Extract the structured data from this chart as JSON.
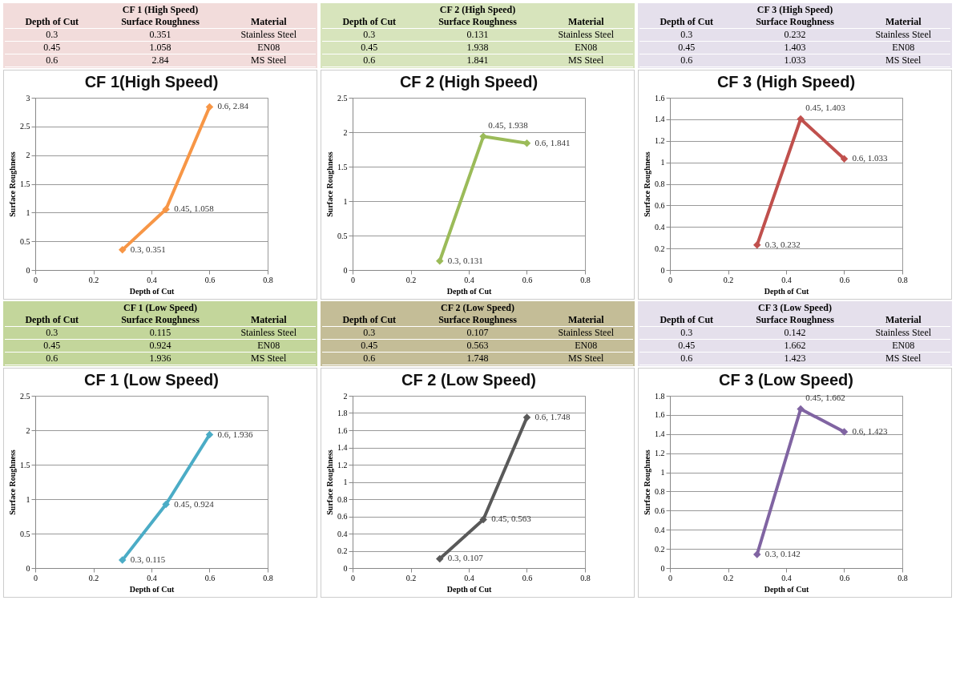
{
  "chart_data": [
    {
      "type": "other",
      "title": "CF 1 (High Speed)",
      "color": "#f2dcdb",
      "annotations": [
        "Depth of Cut",
        "Surface Roughness",
        "Material",
        "0.3",
        "0.351",
        "Stainless Steel",
        "0.45",
        "1.058",
        "EN08",
        "0.6",
        "2.84",
        "MS Steel"
      ]
    },
    {
      "type": "other",
      "title": "CF 2 (High Speed)",
      "color": "#d7e4bc",
      "annotations": [
        "Depth of Cut",
        "Surface Roughness",
        "Material",
        "0.3",
        "0.131",
        "Stainless Steel",
        "0.45",
        "1.938",
        "EN08",
        "0.6",
        "1.841",
        "MS Steel"
      ]
    },
    {
      "type": "other",
      "title": "CF 3 (High Speed)",
      "color": "#e5e0ec",
      "annotations": [
        "Depth of Cut",
        "Surface Roughness",
        "Material",
        "0.3",
        "0.232",
        "Stainless Steel",
        "0.45",
        "1.403",
        "EN08",
        "0.6",
        "1.033",
        "MS Steel"
      ]
    },
    {
      "type": "line",
      "title": "CF 1(High Speed)",
      "xlabel": "Depth of Cut",
      "ylabel": "Surface Roughness",
      "x": [
        0.3,
        0.45,
        0.6
      ],
      "values": [
        0.351,
        1.058,
        2.84
      ],
      "value_labels": [
        "0.3, 0.351",
        "0.45, 1.058",
        "0.6, 2.84"
      ],
      "color": "#f79646",
      "xlim": [
        0,
        0.8
      ],
      "xticks": [
        0,
        0.2,
        0.4,
        0.6,
        0.8
      ],
      "ylim": [
        0,
        3
      ],
      "yticks": [
        0,
        0.5,
        1,
        1.5,
        2,
        2.5,
        3
      ],
      "grid": "y",
      "marker": "diamond",
      "line_style": "solid"
    },
    {
      "type": "line",
      "title": "CF 2 (High Speed)",
      "xlabel": "Depth of Cut",
      "ylabel": "Surface Roughness",
      "x": [
        0.3,
        0.45,
        0.6
      ],
      "values": [
        0.131,
        1.938,
        1.841
      ],
      "value_labels": [
        "0.3, 0.131",
        "0.45, 1.938",
        "0.6, 1.841"
      ],
      "color": "#9bbb59",
      "xlim": [
        0,
        0.8
      ],
      "xticks": [
        0,
        0.2,
        0.4,
        0.6,
        0.8
      ],
      "ylim": [
        0,
        2.5
      ],
      "yticks": [
        0,
        0.5,
        1,
        1.5,
        2,
        2.5
      ],
      "grid": "y",
      "marker": "diamond",
      "line_style": "solid"
    },
    {
      "type": "line",
      "title": "CF 3 (High Speed)",
      "xlabel": "Depth of Cut",
      "ylabel": "Surface Roughness",
      "x": [
        0.3,
        0.45,
        0.6
      ],
      "values": [
        0.232,
        1.403,
        1.033
      ],
      "value_labels": [
        "0.3, 0.232",
        "0.45, 1.403",
        "0.6, 1.033"
      ],
      "color": "#c0504d",
      "xlim": [
        0,
        0.8
      ],
      "xticks": [
        0,
        0.2,
        0.4,
        0.6,
        0.8
      ],
      "ylim": [
        0,
        1.6
      ],
      "yticks": [
        0,
        0.2,
        0.4,
        0.6,
        0.8,
        1,
        1.2,
        1.4,
        1.6
      ],
      "grid": "y",
      "marker": "diamond",
      "line_style": "solid"
    },
    {
      "type": "other",
      "title": "CF 1 (Low Speed)",
      "color": "#c3d69b",
      "annotations": [
        "Depth of Cut",
        "Surface Roughness",
        "Material",
        "0.3",
        "0.115",
        "Stainless Steel",
        "0.45",
        "0.924",
        "EN08",
        "0.6",
        "1.936",
        "MS Steel"
      ]
    },
    {
      "type": "other",
      "title": "CF 2 (Low Speed)",
      "color": "#c4bd97",
      "annotations": [
        "Depth of Cut",
        "Surface Roughness",
        "Material",
        "0.3",
        "0.107",
        "Stainless Steel",
        "0.45",
        "0.563",
        "EN08",
        "0.6",
        "1.748",
        "MS Steel"
      ]
    },
    {
      "type": "other",
      "title": "CF 3 (Low Speed)",
      "color": "#e5e0ec",
      "annotations": [
        "Depth of Cut",
        "Surface Roughness",
        "Material",
        "0.3",
        "0.142",
        "Stainless Steel",
        "0.45",
        "1.662",
        "EN08",
        "0.6",
        "1.423",
        "MS Steel"
      ]
    },
    {
      "type": "line",
      "title": "CF 1 (Low Speed)",
      "xlabel": "Depth of Cut",
      "ylabel": "Surface Roughness",
      "x": [
        0.3,
        0.45,
        0.6
      ],
      "values": [
        0.115,
        0.924,
        1.936
      ],
      "value_labels": [
        "0.3, 0.115",
        "0.45, 0.924",
        "0.6, 1.936"
      ],
      "color": "#4bacc6",
      "xlim": [
        0,
        0.8
      ],
      "xticks": [
        0,
        0.2,
        0.4,
        0.6,
        0.8
      ],
      "ylim": [
        0,
        2.5
      ],
      "yticks": [
        0,
        0.5,
        1,
        1.5,
        2,
        2.5
      ],
      "grid": "y",
      "marker": "diamond",
      "line_style": "solid"
    },
    {
      "type": "line",
      "title": "CF 2 (Low Speed)",
      "xlabel": "Depth of Cut",
      "ylabel": "Surface Roughness",
      "x": [
        0.3,
        0.45,
        0.6
      ],
      "values": [
        0.107,
        0.563,
        1.748
      ],
      "value_labels": [
        "0.3, 0.107",
        "0.45, 0.563",
        "0.6, 1.748"
      ],
      "color": "#595959",
      "xlim": [
        0,
        0.8
      ],
      "xticks": [
        0,
        0.2,
        0.4,
        0.6,
        0.8
      ],
      "ylim": [
        0,
        2
      ],
      "yticks": [
        0,
        0.2,
        0.4,
        0.6,
        0.8,
        1,
        1.2,
        1.4,
        1.6,
        1.8,
        2
      ],
      "grid": "y",
      "marker": "diamond",
      "line_style": "solid"
    },
    {
      "type": "line",
      "title": "CF 3 (Low Speed)",
      "xlabel": "Depth of Cut",
      "ylabel": "Surface Roughness",
      "x": [
        0.3,
        0.45,
        0.6
      ],
      "values": [
        0.142,
        1.662,
        1.423
      ],
      "value_labels": [
        "0.3, 0.142",
        "0.45, 1.662",
        "0.6, 1.423"
      ],
      "color": "#8064a2",
      "xlim": [
        0,
        0.8
      ],
      "xticks": [
        0,
        0.2,
        0.4,
        0.6,
        0.8
      ],
      "ylim": [
        0,
        1.8
      ],
      "yticks": [
        0,
        0.2,
        0.4,
        0.6,
        0.8,
        1,
        1.2,
        1.4,
        1.6,
        1.8
      ],
      "grid": "y",
      "marker": "diamond",
      "line_style": "solid"
    }
  ]
}
